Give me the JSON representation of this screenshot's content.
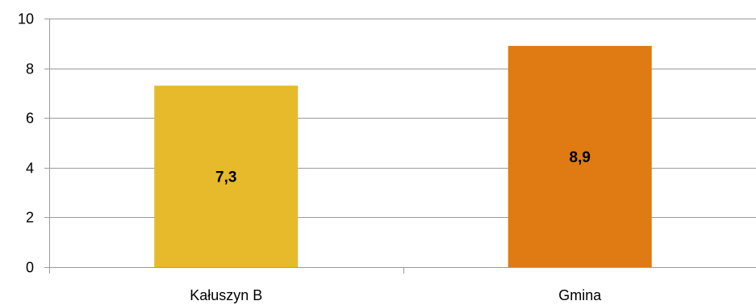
{
  "chart_data": {
    "type": "bar",
    "title": "",
    "xlabel": "",
    "ylabel": "",
    "categories": [
      "Kałuszyn B",
      "Gmina"
    ],
    "values": [
      7.3,
      8.9
    ],
    "value_labels": [
      "7,3",
      "8,9"
    ],
    "bar_colors": [
      "#E6BA2A",
      "#DF7B12"
    ],
    "ylim": [
      0,
      10
    ],
    "yticks": [
      0,
      2,
      4,
      6,
      8,
      10
    ],
    "grid": true,
    "legend": "none"
  }
}
